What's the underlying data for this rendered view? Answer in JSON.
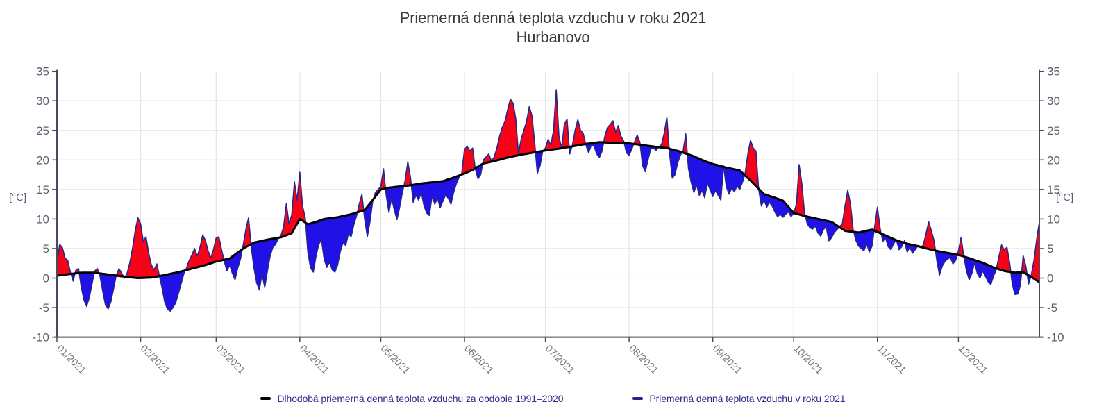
{
  "title": "Priemerná denná teplota vzduchu v roku 2021",
  "subtitle": "Hurbanovo",
  "y_axis": {
    "unit": "[°C]",
    "ticks": [
      35,
      30,
      25,
      20,
      15,
      10,
      5,
      0,
      -5,
      -10
    ],
    "min": -10,
    "max": 35
  },
  "x_axis": {
    "labels": [
      "01/2021",
      "02/2021",
      "03/2021",
      "04/2021",
      "05/2021",
      "06/2021",
      "07/2021",
      "08/2021",
      "09/2021",
      "10/2021",
      "11/2021",
      "12/2021"
    ]
  },
  "legend": {
    "entries": [
      {
        "label": "Dlhodobá priemerná denná teplota vzduchu za obdobie 1991–2020",
        "marker_color": "#000000"
      },
      {
        "label": "Priemerná denná teplota vzduchu v roku 2021",
        "marker_color": "#26268e"
      }
    ]
  },
  "colors": {
    "title_text": "#3a3a3e",
    "axis_line": "#4a4a5c",
    "grid_line": "#e6e6e6",
    "tick_label": "#5d5d72",
    "month_label": "#737378",
    "legend_text": "#2b2b8f",
    "normal_line": "#000000",
    "series2021_line": "#26268e",
    "fill_above": "#f70318",
    "fill_below": "#2012e6"
  },
  "chart_data": {
    "type": "line",
    "title": "Priemerná denná teplota vzduchu v roku 2021",
    "subtitle": "Hurbanovo",
    "ylabel": "[°C]",
    "ylim": [
      -10,
      35
    ],
    "y_ticks": [
      35,
      30,
      25,
      20,
      15,
      10,
      5,
      0,
      -5,
      -10
    ],
    "x_tick_labels": [
      "01/2021",
      "02/2021",
      "03/2021",
      "04/2021",
      "05/2021",
      "06/2021",
      "07/2021",
      "08/2021",
      "09/2021",
      "10/2021",
      "11/2021",
      "12/2021"
    ],
    "days_in_months": [
      31,
      28,
      31,
      30,
      31,
      30,
      31,
      31,
      30,
      31,
      30,
      31
    ],
    "grid": true,
    "legend_position": "bottom",
    "fill": {
      "above_normal": "#f70318",
      "below_normal": "#2012e6"
    },
    "series": [
      {
        "name": "Dlhodobá priemerná denná teplota vzduchu za obdobie 1991–2020",
        "role": "climate-normal-1991-2020",
        "color": "#000000",
        "anchor_points_day_value": [
          [
            1,
            0.4
          ],
          [
            6,
            0.7
          ],
          [
            10,
            0.9
          ],
          [
            15,
            0.9
          ],
          [
            20,
            0.6
          ],
          [
            25,
            0.3
          ],
          [
            31,
            0.0
          ],
          [
            36,
            0.1
          ],
          [
            41,
            0.5
          ],
          [
            46,
            1.0
          ],
          [
            51,
            1.6
          ],
          [
            56,
            2.2
          ],
          [
            60,
            2.8
          ],
          [
            65,
            3.3
          ],
          [
            70,
            5.0
          ],
          [
            74,
            6.0
          ],
          [
            79,
            6.5
          ],
          [
            84,
            6.9
          ],
          [
            88,
            7.6
          ],
          [
            91,
            10.0
          ],
          [
            94,
            9.1
          ],
          [
            97,
            9.5
          ],
          [
            100,
            10.0
          ],
          [
            105,
            10.3
          ],
          [
            110,
            10.8
          ],
          [
            115,
            11.5
          ],
          [
            118,
            13.2
          ],
          [
            121,
            15.0
          ],
          [
            124,
            15.3
          ],
          [
            128,
            15.5
          ],
          [
            132,
            15.7
          ],
          [
            136,
            16.0
          ],
          [
            140,
            16.2
          ],
          [
            144,
            16.4
          ],
          [
            148,
            17.0
          ],
          [
            152,
            17.7
          ],
          [
            155,
            18.3
          ],
          [
            159,
            19.4
          ],
          [
            163,
            19.8
          ],
          [
            168,
            20.4
          ],
          [
            172,
            20.8
          ],
          [
            177,
            21.2
          ],
          [
            182,
            21.6
          ],
          [
            187,
            21.9
          ],
          [
            192,
            22.3
          ],
          [
            197,
            22.7
          ],
          [
            202,
            23.0
          ],
          [
            206,
            22.9
          ],
          [
            213,
            22.8
          ],
          [
            218,
            22.5
          ],
          [
            223,
            22.2
          ],
          [
            227,
            22.0
          ],
          [
            232,
            21.4
          ],
          [
            237,
            20.6
          ],
          [
            241,
            19.8
          ],
          [
            244,
            19.3
          ],
          [
            249,
            18.7
          ],
          [
            254,
            18.2
          ],
          [
            258,
            16.5
          ],
          [
            263,
            14.2
          ],
          [
            267,
            13.6
          ],
          [
            270,
            13.1
          ],
          [
            274,
            11.0
          ],
          [
            279,
            10.4
          ],
          [
            284,
            9.9
          ],
          [
            288,
            9.5
          ],
          [
            293,
            8.0
          ],
          [
            298,
            7.7
          ],
          [
            303,
            8.2
          ],
          [
            308,
            7.2
          ],
          [
            312,
            6.4
          ],
          [
            316,
            5.8
          ],
          [
            320,
            5.4
          ],
          [
            325,
            4.8
          ],
          [
            329,
            4.4
          ],
          [
            333,
            4.1
          ],
          [
            336,
            3.8
          ],
          [
            340,
            3.2
          ],
          [
            344,
            2.6
          ],
          [
            348,
            1.8
          ],
          [
            352,
            1.2
          ],
          [
            356,
            0.9
          ],
          [
            359,
            1.0
          ],
          [
            362,
            0.2
          ],
          [
            365,
            -0.7
          ]
        ]
      },
      {
        "name": "Priemerná denná teplota vzduchu v roku 2021",
        "role": "daily-mean-2021",
        "color": "#26268e",
        "daily_values": [
          2.3,
          5.7,
          5.2,
          3.4,
          3.0,
          1.0,
          -0.5,
          1.3,
          1.6,
          -1.5,
          -3.7,
          -4.8,
          -3.3,
          -1.0,
          1.2,
          1.6,
          0.2,
          -2.3,
          -4.6,
          -5.2,
          -4.0,
          -1.8,
          0.5,
          1.6,
          0.8,
          0.0,
          0.8,
          2.6,
          5.0,
          8.0,
          10.2,
          9.2,
          6.2,
          7.0,
          4.2,
          2.2,
          1.4,
          2.4,
          0.3,
          -1.8,
          -4.2,
          -5.3,
          -5.6,
          -5.0,
          -4.2,
          -2.6,
          -1.0,
          0.7,
          1.7,
          3.0,
          3.9,
          5.0,
          3.7,
          5.2,
          7.3,
          6.4,
          4.6,
          3.4,
          4.8,
          6.8,
          7.0,
          4.8,
          2.8,
          1.2,
          2.2,
          0.8,
          -0.3,
          1.7,
          3.2,
          5.6,
          8.2,
          10.2,
          5.2,
          1.7,
          -0.8,
          -2.0,
          0.7,
          -1.6,
          1.2,
          3.7,
          5.2,
          5.7,
          6.7,
          7.2,
          8.7,
          12.6,
          9.2,
          10.7,
          16.3,
          13.2,
          17.9,
          12.2,
          10.2,
          4.2,
          1.7,
          1.0,
          3.7,
          5.7,
          6.5,
          3.2,
          1.8,
          2.7,
          1.4,
          1.0,
          2.2,
          4.5,
          6.0,
          5.5,
          7.5,
          7.0,
          9.0,
          10.5,
          12.5,
          14.2,
          10.0,
          7.0,
          9.5,
          13.0,
          14.5,
          15.0,
          15.5,
          18.5,
          14.0,
          11.1,
          13.5,
          11.5,
          9.9,
          12.0,
          14.5,
          16.5,
          19.7,
          17.0,
          12.8,
          14.0,
          13.2,
          14.5,
          12.2,
          11.0,
          10.6,
          13.9,
          12.5,
          13.5,
          11.9,
          13.0,
          14.1,
          13.5,
          12.5,
          14.5,
          16.0,
          17.0,
          17.8,
          21.8,
          22.3,
          21.5,
          22.0,
          18.5,
          16.8,
          17.5,
          20.0,
          20.5,
          21.0,
          19.8,
          20.5,
          22.0,
          24.0,
          25.5,
          26.5,
          28.5,
          30.3,
          29.6,
          27.0,
          21.0,
          23.5,
          25.0,
          26.5,
          29.0,
          27.5,
          23.0,
          17.7,
          19.0,
          21.5,
          22.0,
          23.5,
          22.5,
          25.0,
          31.9,
          24.0,
          22.0,
          26.0,
          26.9,
          21.0,
          22.5,
          25.0,
          26.8,
          25.0,
          24.5,
          22.5,
          21.2,
          22.5,
          22.3,
          21.0,
          20.4,
          21.5,
          24.0,
          25.5,
          26.0,
          26.6,
          24.7,
          25.8,
          24.0,
          23.2,
          21.2,
          20.8,
          21.8,
          23.0,
          24.2,
          23.0,
          19.0,
          18.0,
          20.0,
          21.8,
          22.0,
          21.6,
          22.2,
          22.6,
          24.5,
          27.2,
          21.0,
          16.9,
          17.5,
          19.5,
          20.8,
          21.5,
          24.4,
          18.5,
          16.2,
          14.5,
          15.8,
          14.0,
          14.8,
          13.6,
          16.0,
          15.0,
          13.8,
          14.8,
          14.0,
          13.2,
          19.0,
          15.5,
          14.2,
          15.2,
          14.6,
          15.6,
          15.0,
          16.2,
          17.8,
          21.0,
          23.3,
          22.0,
          21.5,
          15.0,
          12.2,
          13.2,
          12.0,
          12.8,
          12.2,
          11.2,
          10.4,
          10.8,
          10.3,
          10.8,
          11.2,
          10.4,
          11.0,
          12.5,
          19.2,
          16.0,
          11.0,
          9.2,
          8.5,
          8.3,
          8.8,
          7.6,
          7.1,
          8.2,
          8.7,
          6.3,
          6.8,
          7.7,
          8.2,
          8.7,
          9.2,
          12.2,
          14.9,
          12.6,
          8.2,
          6.4,
          5.4,
          5.0,
          4.6,
          5.8,
          4.4,
          5.4,
          8.8,
          12.0,
          8.4,
          6.2,
          6.8,
          5.3,
          4.8,
          5.8,
          6.5,
          4.8,
          5.3,
          6.3,
          4.4,
          5.2,
          4.2,
          4.8,
          5.5,
          5.2,
          5.6,
          7.5,
          9.5,
          8.0,
          6.3,
          3.0,
          0.5,
          2.0,
          2.8,
          3.2,
          3.5,
          2.4,
          3.0,
          4.6,
          6.9,
          3.7,
          1.2,
          -0.3,
          0.8,
          2.6,
          0.8,
          0.0,
          1.2,
          0.3,
          -0.6,
          -1.1,
          0.3,
          1.4,
          3.6,
          5.6,
          4.8,
          5.2,
          2.6,
          -1.2,
          -2.8,
          -2.7,
          -1.2,
          3.8,
          2.0,
          -1.0,
          0.5,
          3.0,
          6.5,
          9.5
        ]
      }
    ]
  }
}
